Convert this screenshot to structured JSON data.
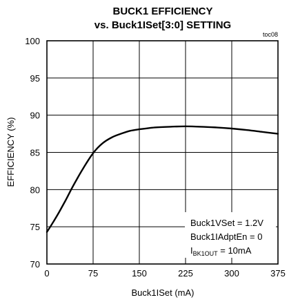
{
  "chart_data": {
    "type": "line",
    "title": "BUCK1 EFFICIENCY",
    "subtitle": "vs. Buck1ISet[3:0] SETTING",
    "figure_code": "toc08",
    "xlabel": "Buck1ISet (mA)",
    "ylabel": "EFFICIENCY (%)",
    "xlim": [
      0,
      375
    ],
    "ylim": [
      70,
      100
    ],
    "x_ticks": [
      0,
      75,
      150,
      225,
      300,
      375
    ],
    "y_ticks": [
      70,
      75,
      80,
      85,
      90,
      95,
      100
    ],
    "grid": true,
    "series": [
      {
        "x": [
          0,
          10,
          20,
          30,
          40,
          50,
          60,
          75,
          90,
          105,
          120,
          135,
          150,
          175,
          200,
          225,
          250,
          275,
          300,
          325,
          350,
          375
        ],
        "values": [
          74.3,
          75.6,
          77.0,
          78.5,
          80.1,
          81.6,
          83.0,
          84.9,
          86.2,
          87.0,
          87.5,
          87.9,
          88.1,
          88.35,
          88.45,
          88.5,
          88.45,
          88.35,
          88.2,
          88.0,
          87.75,
          87.5
        ]
      }
    ],
    "annotation": {
      "lines": [
        {
          "main": "Buck1VSet = 1.2V"
        },
        {
          "main": "Buck1IAdptEn = 0"
        },
        {
          "prefix": "I",
          "sub": "BK1OUT",
          "suffix": " = 10mA"
        }
      ]
    }
  }
}
